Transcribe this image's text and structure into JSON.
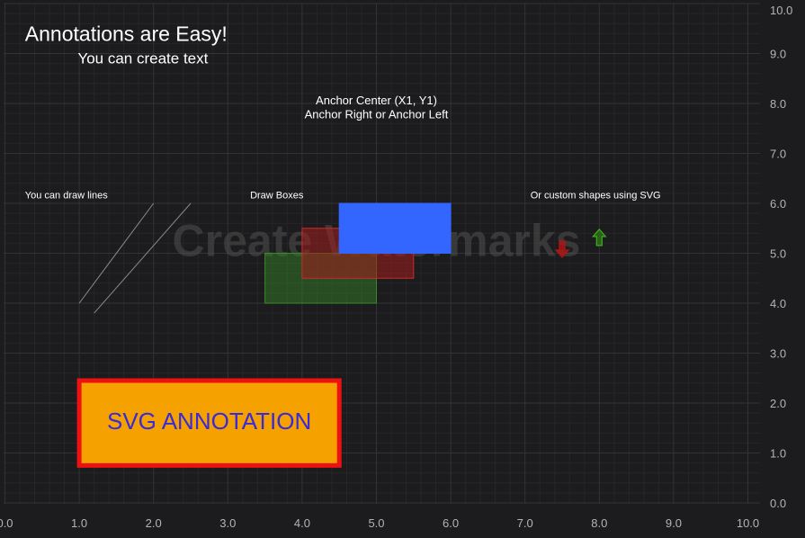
{
  "colors": {
    "background": "#1c1c1e",
    "grid_major": "#333335",
    "grid_minor": "#262628",
    "axis_text": "#b4b4b4",
    "watermark": "#505050",
    "box_green": "#3a8a2a",
    "box_red": "#a01e1e",
    "box_blue": "#3366ff",
    "svg_box_fill": "#f5a100",
    "svg_box_border": "#ee1111",
    "svg_box_text": "#3a2ad8",
    "arrow_up": "#3fae1f",
    "arrow_down": "#b01515"
  },
  "chart_data": {
    "type": "scatter",
    "xlim": [
      0,
      10
    ],
    "ylim": [
      0,
      10
    ],
    "x_ticks": [
      "0.0",
      "1.0",
      "2.0",
      "3.0",
      "4.0",
      "5.0",
      "6.0",
      "7.0",
      "8.0",
      "9.0",
      "10.0"
    ],
    "y_ticks": [
      "0.0",
      "1.0",
      "2.0",
      "3.0",
      "4.0",
      "5.0",
      "6.0",
      "7.0",
      "8.0",
      "9.0",
      "10.0"
    ],
    "grid": true,
    "watermark": "Create Watermarks",
    "texts": {
      "title": "Annotations are Easy!",
      "subtitle": "You can create text",
      "anchor_center": "Anchor Center (X1, Y1)",
      "anchor_right": "Anchor Right or Anchor Left",
      "lines_label": "You can draw lines",
      "boxes_label": "Draw Boxes",
      "shapes_label": "Or custom shapes using SVG",
      "svg_annotation": "SVG ANNOTATION"
    },
    "lines": [
      {
        "x1": 1.0,
        "y1": 4.0,
        "x2": 2.0,
        "y2": 6.0
      },
      {
        "x1": 1.2,
        "y1": 3.8,
        "x2": 2.5,
        "y2": 6.0
      }
    ],
    "boxes": [
      {
        "name": "green",
        "x1": 3.5,
        "y1": 4.0,
        "x2": 5.0,
        "y2": 5.0
      },
      {
        "name": "red",
        "x1": 4.0,
        "y1": 4.5,
        "x2": 5.5,
        "y2": 5.5
      },
      {
        "name": "blue",
        "x1": 4.5,
        "y1": 5.0,
        "x2": 6.0,
        "y2": 6.0
      }
    ],
    "svg_box": {
      "x1": 1.0,
      "y1": 0.75,
      "x2": 4.5,
      "y2": 2.45
    },
    "arrows": [
      {
        "direction": "down",
        "x": 7.5,
        "y": 5.1
      },
      {
        "direction": "up",
        "x": 8.0,
        "y": 5.3
      }
    ]
  }
}
